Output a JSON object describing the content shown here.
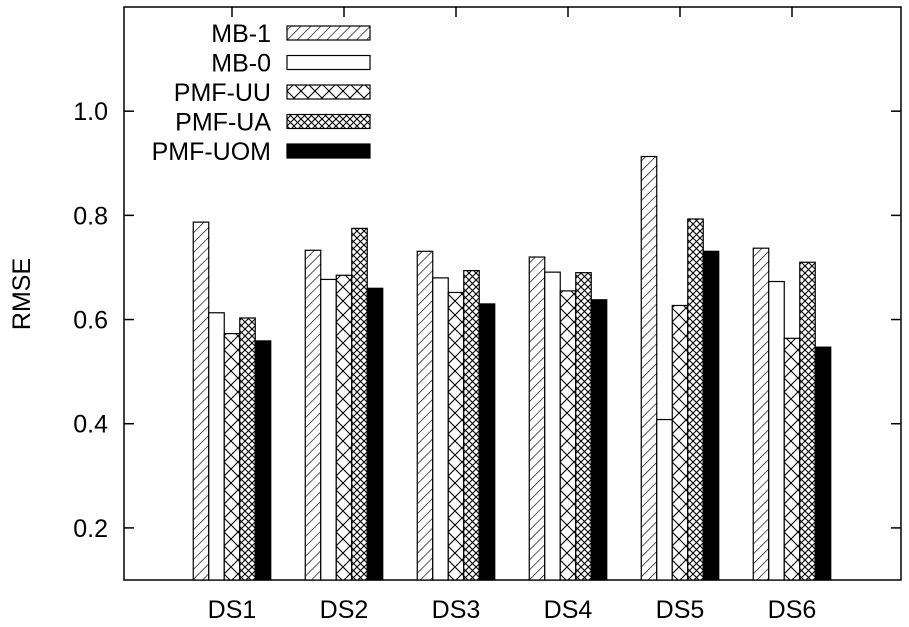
{
  "chart_data": {
    "type": "bar",
    "title": "",
    "xlabel": "",
    "ylabel": "RMSE",
    "ylim": [
      0.1,
      1.2
    ],
    "yticks": [
      "0.2",
      "0.4",
      "0.6",
      "0.8",
      "1.0"
    ],
    "grid": false,
    "legend_position": "top-left",
    "categories": [
      "DS1",
      "DS2",
      "DS3",
      "DS4",
      "DS5",
      "DS6"
    ],
    "series": [
      {
        "name": "MB-1",
        "pattern": "diagonal-hatch",
        "values": [
          0.787,
          0.733,
          0.731,
          0.72,
          0.913,
          0.737
        ]
      },
      {
        "name": "MB-0",
        "pattern": "empty",
        "values": [
          0.613,
          0.677,
          0.68,
          0.691,
          0.408,
          0.673
        ]
      },
      {
        "name": "PMF-UU",
        "pattern": "sparse-crosshatch",
        "values": [
          0.573,
          0.685,
          0.652,
          0.655,
          0.627,
          0.564
        ]
      },
      {
        "name": "PMF-UA",
        "pattern": "dense-crosshatch",
        "values": [
          0.603,
          0.775,
          0.694,
          0.69,
          0.793,
          0.71
        ]
      },
      {
        "name": "PMF-UOM",
        "pattern": "solid-black",
        "values": [
          0.559,
          0.66,
          0.63,
          0.638,
          0.731,
          0.547
        ]
      }
    ]
  }
}
